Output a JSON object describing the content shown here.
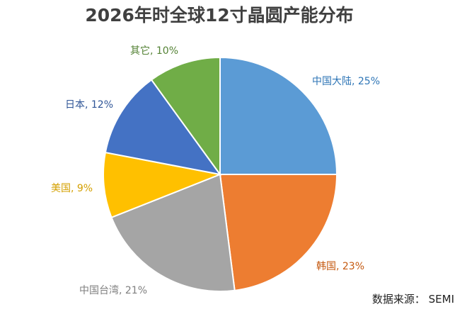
{
  "chart_data": {
    "type": "pie",
    "title": "2026年时全球12寸晶圆产能分布",
    "slices": [
      {
        "label": "中国大陆",
        "value": 25,
        "display": "中国大陆, 25%",
        "color": "#5B9BD5",
        "label_color": "#2E75B6"
      },
      {
        "label": "韩国",
        "value": 23,
        "display": "韩国, 23%",
        "color": "#ED7D31",
        "label_color": "#C55A11"
      },
      {
        "label": "中国台湾",
        "value": 21,
        "display": "中国台湾, 21%",
        "color": "#A5A5A5",
        "label_color": "#7F7F7F"
      },
      {
        "label": "美国",
        "value": 9,
        "display": "美国, 9%",
        "color": "#FFC000",
        "label_color": "#D4A000"
      },
      {
        "label": "日本",
        "value": 12,
        "display": "日本, 12%",
        "color": "#4472C4",
        "label_color": "#2F5597"
      },
      {
        "label": "其它",
        "value": 10,
        "display": "其它, 10%",
        "color": "#70AD47",
        "label_color": "#548235"
      }
    ]
  },
  "source": "数据来源：  SEMI"
}
